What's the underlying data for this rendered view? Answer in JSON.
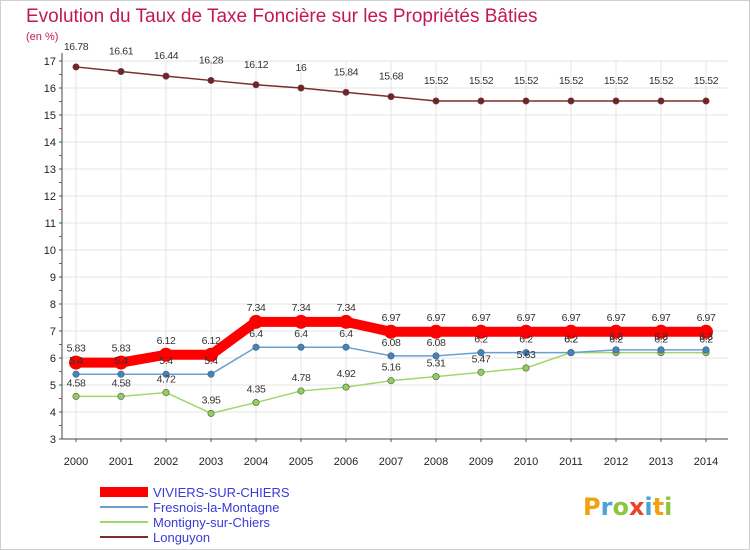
{
  "chart_data": {
    "type": "line",
    "title": "Evolution du Taux de Taxe Foncière sur les Propriétés Bâties",
    "ylabel": "(en %)",
    "ylim": [
      3,
      17
    ],
    "yticks": [
      3,
      4,
      5,
      6,
      7,
      8,
      9,
      10,
      11,
      12,
      13,
      14,
      15,
      16,
      17
    ],
    "categories": [
      "2000",
      "2001",
      "2002",
      "2003",
      "2004",
      "2005",
      "2006",
      "2007",
      "2008",
      "2009",
      "2010",
      "2011",
      "2012",
      "2013",
      "2014"
    ],
    "series": [
      {
        "name": "Longuyon",
        "color": "#7a2e2e",
        "values": [
          16.78,
          16.61,
          16.44,
          16.28,
          16.12,
          16,
          15.84,
          15.68,
          15.52,
          15.52,
          15.52,
          15.52,
          15.52,
          15.52,
          15.52
        ],
        "labels": [
          "16.78",
          "16.61",
          "16.44",
          "16.28",
          "16.12",
          "16",
          "15.84",
          "15.68",
          "15.52",
          "15.52",
          "15.52",
          "15.52",
          "15.52",
          "15.52",
          "15.52"
        ]
      },
      {
        "name": "Montigny-sur-Chiers",
        "color": "#9dd86a",
        "values": [
          4.58,
          4.58,
          4.72,
          3.95,
          4.35,
          4.78,
          4.92,
          5.16,
          5.31,
          5.47,
          5.63,
          6.2,
          6.2,
          6.2,
          6.2
        ],
        "labels": [
          "4.58",
          "4.58",
          "4.72",
          "3.95",
          "4.35",
          "4.78",
          "4.92",
          "5.16",
          "5.31",
          "5.47",
          "5.63",
          "6.2",
          "6.2",
          "6.2",
          "6.2"
        ]
      },
      {
        "name": "Fresnois-la-Montagne",
        "color": "#6aa0d0",
        "values": [
          5.4,
          5.4,
          5.4,
          5.4,
          6.4,
          6.4,
          6.4,
          6.08,
          6.08,
          6.2,
          6.2,
          6.2,
          6.3,
          6.3,
          6.3
        ],
        "labels": [
          "5.4",
          "5.4",
          "5.4",
          "5.4",
          "6.4",
          "6.4",
          "6.4",
          "6.08",
          "6.08",
          "6.2",
          "6.2",
          "6.2",
          "6.3",
          "6.3",
          "6.3"
        ]
      },
      {
        "name": "VIVIERS-SUR-CHIERS",
        "color": "#ff0000",
        "values": [
          5.83,
          5.83,
          6.12,
          6.12,
          7.34,
          7.34,
          7.34,
          6.97,
          6.97,
          6.97,
          6.97,
          6.97,
          6.97,
          6.97,
          6.97
        ],
        "labels": [
          "5.83",
          "5.83",
          "6.12",
          "6.12",
          "7.34",
          "7.34",
          "7.34",
          "6.97",
          "6.97",
          "6.97",
          "6.97",
          "6.97",
          "6.97",
          "6.97",
          "6.97"
        ]
      }
    ],
    "legend": [
      "VIVIERS-SUR-CHIERS",
      "Fresnois-la-Montagne",
      "Montigny-sur-Chiers",
      "Longuyon"
    ]
  },
  "logo": {
    "text": "Proxiti"
  }
}
